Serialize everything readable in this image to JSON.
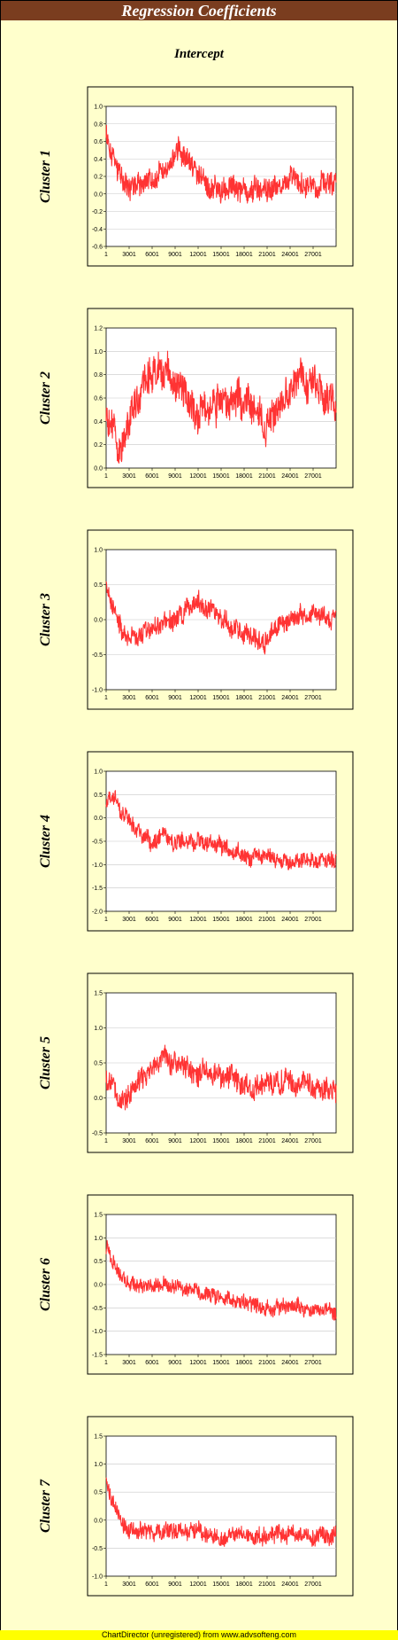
{
  "header": {
    "title": "Regression Coefficients"
  },
  "subtitle": "Intercept",
  "footer": {
    "text": "ChartDirector (unregistered) from www.advsofteng.com"
  },
  "colors": {
    "series": "#ff3333",
    "title_bar": "#7a3d1f",
    "background": "#ffffcc",
    "footer": "#ffff00"
  },
  "chart_data": [
    {
      "type": "line",
      "label": "Cluster 1",
      "xlim": [
        1,
        30000
      ],
      "x_ticks": [
        "1",
        "3001",
        "6001",
        "9001",
        "12001",
        "15001",
        "18001",
        "21001",
        "24001",
        "27001"
      ],
      "ylim": [
        -0.6,
        1.0
      ],
      "y_ticks": [
        "1.0",
        "0.8",
        "0.6",
        "0.4",
        "0.2",
        "0.0",
        "-0.2",
        "-0.4",
        "-0.6"
      ],
      "series_trend": [
        [
          1,
          0.72
        ],
        [
          1200,
          0.3
        ],
        [
          3000,
          0.1
        ],
        [
          6000,
          0.15
        ],
        [
          8500,
          0.35
        ],
        [
          9500,
          0.5
        ],
        [
          12000,
          0.2
        ],
        [
          13500,
          0.1
        ],
        [
          15000,
          0.05
        ],
        [
          18000,
          0.05
        ],
        [
          21000,
          0.08
        ],
        [
          24000,
          0.12
        ],
        [
          27000,
          0.1
        ],
        [
          30000,
          0.1
        ]
      ],
      "noise": 0.12,
      "grid": true
    },
    {
      "type": "line",
      "label": "Cluster 2",
      "xlim": [
        1,
        30000
      ],
      "x_ticks": [
        "1",
        "3001",
        "6001",
        "9001",
        "12001",
        "15001",
        "18001",
        "21001",
        "24001",
        "27001"
      ],
      "ylim": [
        0.0,
        1.2
      ],
      "y_ticks": [
        "1.2",
        "1.0",
        "0.8",
        "0.6",
        "0.4",
        "0.2",
        "0.0"
      ],
      "series_trend": [
        [
          1,
          0.55
        ],
        [
          1200,
          0.3
        ],
        [
          1800,
          0.15
        ],
        [
          3000,
          0.4
        ],
        [
          5000,
          0.75
        ],
        [
          7000,
          0.85
        ],
        [
          9000,
          0.75
        ],
        [
          12000,
          0.45
        ],
        [
          14000,
          0.6
        ],
        [
          16000,
          0.55
        ],
        [
          18000,
          0.6
        ],
        [
          21000,
          0.4
        ],
        [
          23000,
          0.55
        ],
        [
          25000,
          0.8
        ],
        [
          27000,
          0.7
        ],
        [
          30000,
          0.55
        ]
      ],
      "noise": 0.13,
      "grid": true
    },
    {
      "type": "line",
      "label": "Cluster 3",
      "xlim": [
        1,
        30000
      ],
      "x_ticks": [
        "1",
        "3001",
        "6001",
        "9001",
        "12001",
        "15001",
        "18001",
        "21001",
        "24001",
        "27001"
      ],
      "ylim": [
        -1.0,
        1.0
      ],
      "y_ticks": [
        "1.0",
        "0.5",
        "0.0",
        "-0.5",
        "-1.0"
      ],
      "series_trend": [
        [
          1,
          0.5
        ],
        [
          1500,
          0.0
        ],
        [
          3000,
          -0.3
        ],
        [
          6000,
          -0.15
        ],
        [
          9000,
          0.0
        ],
        [
          12000,
          0.25
        ],
        [
          15000,
          0.0
        ],
        [
          18000,
          -0.2
        ],
        [
          20500,
          -0.35
        ],
        [
          22000,
          -0.05
        ],
        [
          24000,
          0.05
        ],
        [
          27000,
          0.1
        ],
        [
          30000,
          0.0
        ]
      ],
      "noise": 0.12,
      "grid": true
    },
    {
      "type": "line",
      "label": "Cluster 4",
      "xlim": [
        1,
        30000
      ],
      "x_ticks": [
        "1",
        "3001",
        "6001",
        "9001",
        "12001",
        "15001",
        "18001",
        "21001",
        "24001",
        "27001"
      ],
      "ylim": [
        -2.0,
        1.0
      ],
      "y_ticks": [
        "1.0",
        "0.5",
        "0.0",
        "-0.5",
        "-1.0",
        "-1.5",
        "-2.0"
      ],
      "series_trend": [
        [
          1,
          0.3
        ],
        [
          800,
          0.5
        ],
        [
          2000,
          0.1
        ],
        [
          4000,
          -0.3
        ],
        [
          6000,
          -0.5
        ],
        [
          7500,
          -0.3
        ],
        [
          9000,
          -0.55
        ],
        [
          12000,
          -0.45
        ],
        [
          15000,
          -0.6
        ],
        [
          18000,
          -0.85
        ],
        [
          21000,
          -0.85
        ],
        [
          24000,
          -0.95
        ],
        [
          27000,
          -0.85
        ],
        [
          30000,
          -0.95
        ]
      ],
      "noise": 0.15,
      "grid": true
    },
    {
      "type": "line",
      "label": "Cluster 5",
      "xlim": [
        1,
        30000
      ],
      "x_ticks": [
        "1",
        "3001",
        "6001",
        "9001",
        "12001",
        "15001",
        "18001",
        "21001",
        "24001",
        "27001"
      ],
      "ylim": [
        -0.5,
        1.5
      ],
      "y_ticks": [
        "1.5",
        "1.0",
        "0.5",
        "0.0",
        "-0.5"
      ],
      "series_trend": [
        [
          1,
          0.3
        ],
        [
          1500,
          0.05
        ],
        [
          2500,
          -0.05
        ],
        [
          4000,
          0.2
        ],
        [
          6000,
          0.4
        ],
        [
          7500,
          0.6
        ],
        [
          9000,
          0.45
        ],
        [
          12000,
          0.35
        ],
        [
          15000,
          0.4
        ],
        [
          18000,
          0.2
        ],
        [
          21000,
          0.15
        ],
        [
          24000,
          0.25
        ],
        [
          27000,
          0.15
        ],
        [
          30000,
          0.1
        ]
      ],
      "noise": 0.14,
      "grid": true
    },
    {
      "type": "line",
      "label": "Cluster 6",
      "xlim": [
        1,
        30000
      ],
      "x_ticks": [
        "1",
        "3001",
        "6001",
        "9001",
        "12001",
        "15001",
        "18001",
        "21001",
        "24001",
        "27001"
      ],
      "ylim": [
        -1.5,
        1.5
      ],
      "y_ticks": [
        "1.5",
        "1.0",
        "0.5",
        "0.0",
        "-0.5",
        "-1.0",
        "-1.5"
      ],
      "series_trend": [
        [
          1,
          0.8
        ],
        [
          1500,
          0.3
        ],
        [
          3000,
          0.05
        ],
        [
          6000,
          0.0
        ],
        [
          9000,
          -0.05
        ],
        [
          12000,
          -0.15
        ],
        [
          15000,
          -0.3
        ],
        [
          18000,
          -0.4
        ],
        [
          21000,
          -0.5
        ],
        [
          24000,
          -0.5
        ],
        [
          27000,
          -0.55
        ],
        [
          30000,
          -0.55
        ]
      ],
      "noise": 0.14,
      "grid": true
    },
    {
      "type": "line",
      "label": "Cluster 7",
      "xlim": [
        1,
        30000
      ],
      "x_ticks": [
        "1",
        "3001",
        "6001",
        "9001",
        "12001",
        "15001",
        "18001",
        "21001",
        "24001",
        "27001"
      ],
      "ylim": [
        -1.0,
        1.5
      ],
      "y_ticks": [
        "1.5",
        "1.0",
        "0.5",
        "0.0",
        "-0.5",
        "-1.0"
      ],
      "series_trend": [
        [
          1,
          0.7
        ],
        [
          1000,
          0.3
        ],
        [
          2000,
          0.0
        ],
        [
          3000,
          -0.2
        ],
        [
          6000,
          -0.2
        ],
        [
          9000,
          -0.25
        ],
        [
          12000,
          -0.2
        ],
        [
          15000,
          -0.3
        ],
        [
          18000,
          -0.25
        ],
        [
          21000,
          -0.3
        ],
        [
          24000,
          -0.25
        ],
        [
          27000,
          -0.3
        ],
        [
          30000,
          -0.25
        ]
      ],
      "noise": 0.13,
      "grid": true
    }
  ]
}
